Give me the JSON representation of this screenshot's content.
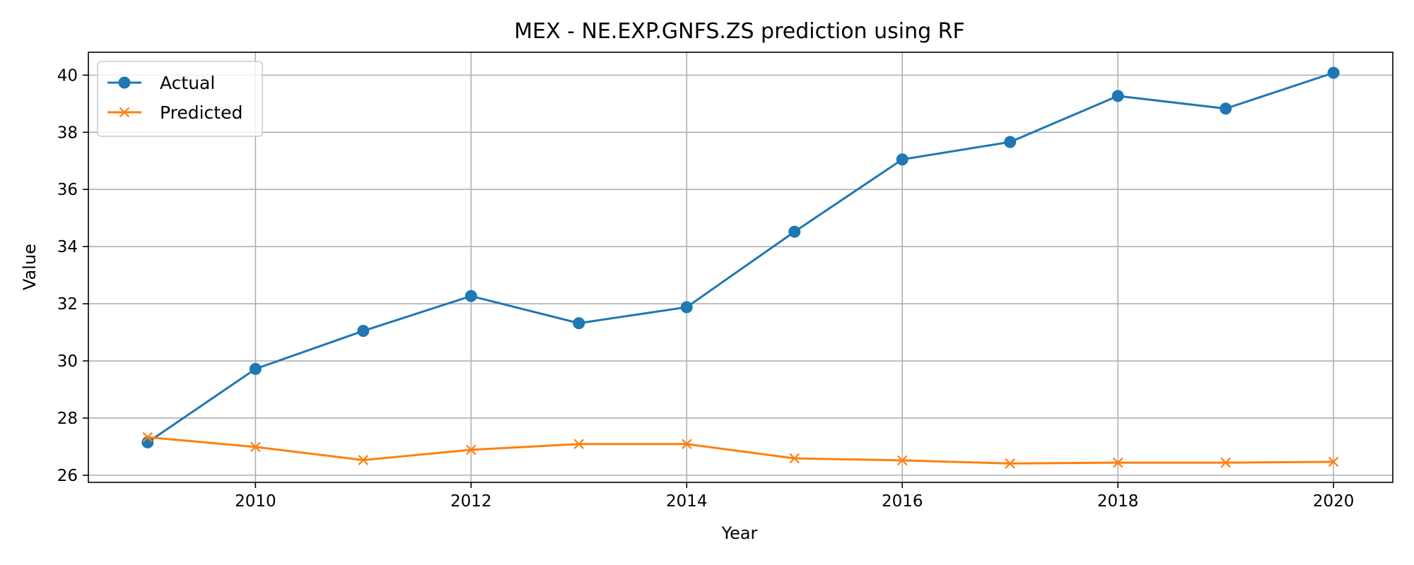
{
  "chart_data": {
    "type": "line",
    "title": "MEX - NE.EXP.GNFS.ZS prediction using RF",
    "xlabel": "Year",
    "ylabel": "Value",
    "x": [
      2009,
      2010,
      2011,
      2012,
      2013,
      2014,
      2015,
      2016,
      2017,
      2018,
      2019,
      2020
    ],
    "xlim": [
      2008.45,
      2020.55
    ],
    "ylim": [
      25.75,
      40.8
    ],
    "xticks": [
      2010,
      2012,
      2014,
      2016,
      2018,
      2020
    ],
    "yticks": [
      26,
      28,
      30,
      32,
      34,
      36,
      38,
      40
    ],
    "grid": true,
    "legend_position": "top-left",
    "series": [
      {
        "name": "Actual",
        "color": "#1f77b4",
        "marker": "circle",
        "values": [
          27.15,
          29.72,
          31.05,
          32.27,
          31.32,
          31.88,
          34.52,
          37.05,
          37.66,
          39.27,
          38.83,
          40.08
        ]
      },
      {
        "name": "Predicted",
        "color": "#ff7f0e",
        "marker": "x",
        "values": [
          27.33,
          26.99,
          26.53,
          26.89,
          27.09,
          27.09,
          26.59,
          26.52,
          26.41,
          26.44,
          26.44,
          26.47
        ]
      }
    ]
  }
}
